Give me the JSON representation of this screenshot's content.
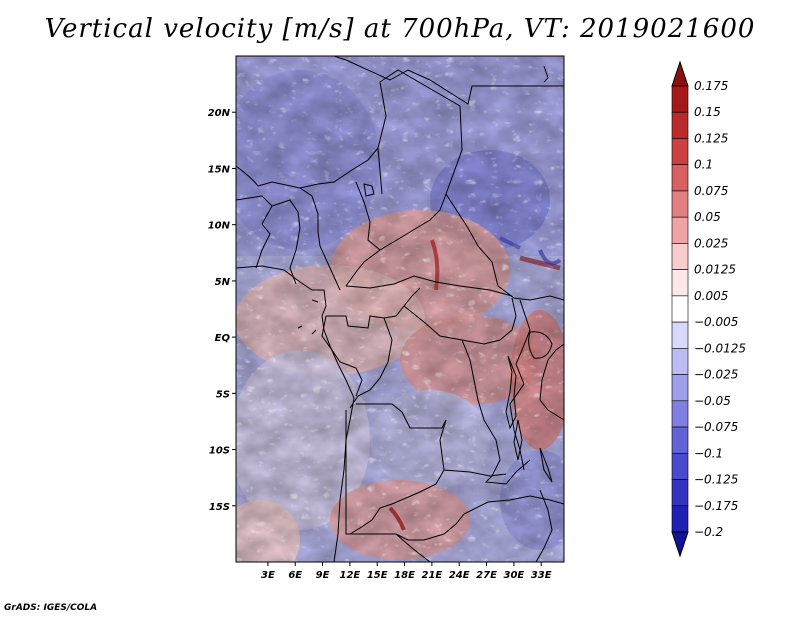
{
  "title": "Vertical velocity [m/s] at 700hPa, VT: 2019021600",
  "credit": "GrADS: IGES/COLA",
  "map": {
    "lon_range": [
      -0.5,
      35.5
    ],
    "lat_range": [
      -20,
      25
    ],
    "lat_labels": [
      "20N",
      "15N",
      "10N",
      "5N",
      "EQ",
      "5S",
      "10S",
      "15S"
    ],
    "lat_values": [
      20,
      15,
      10,
      5,
      0,
      -5,
      -10,
      -15
    ],
    "lon_labels": [
      "3E",
      "6E",
      "9E",
      "12E",
      "15E",
      "18E",
      "21E",
      "24E",
      "27E",
      "30E",
      "33E"
    ],
    "lon_values": [
      3,
      6,
      9,
      12,
      15,
      18,
      21,
      24,
      27,
      30,
      33
    ]
  },
  "colorbar": {
    "levels": [
      "0.175",
      "0.15",
      "0.125",
      "0.1",
      "0.075",
      "0.05",
      "0.025",
      "0.0125",
      "0.005",
      "−0.005",
      "−0.0125",
      "−0.025",
      "−0.05",
      "−0.075",
      "−0.1",
      "−0.125",
      "−0.175",
      "−0.2"
    ],
    "colors": [
      "#8b1010",
      "#a51818",
      "#bb2a2a",
      "#cc4040",
      "#d86060",
      "#e28080",
      "#eea4a4",
      "#f6cccc",
      "#fce8e8",
      "#ffffff",
      "#d8d8fa",
      "#bcbcf2",
      "#9e9eea",
      "#8080e0",
      "#6262d6",
      "#4a4acc",
      "#3434c0",
      "#2020b2",
      "#12129a"
    ]
  }
}
